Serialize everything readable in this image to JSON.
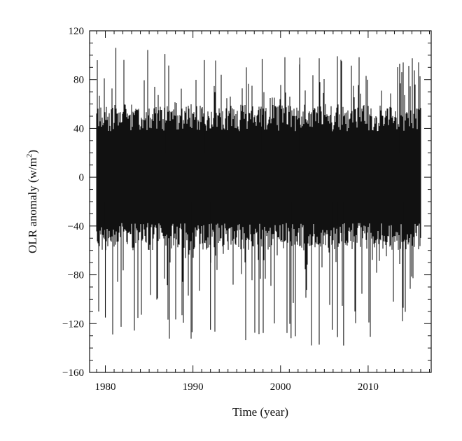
{
  "chart_data": {
    "type": "line",
    "title": "",
    "xlabel": "Time (year)",
    "ylabel_main": "OLR anomaly (w/m",
    "ylabel_sup": "2",
    "ylabel_end": ")",
    "xlim": [
      1978.2,
      2017.2
    ],
    "ylim": [
      -160,
      120
    ],
    "xticks": [
      1980,
      1990,
      2000,
      2010
    ],
    "yticks": [
      120,
      80,
      40,
      0,
      -40,
      -80,
      -120,
      -160
    ],
    "ytick_labels": [
      "120",
      "80",
      "40",
      "0",
      "−40",
      "−80",
      "−120",
      "−160"
    ],
    "series": [
      {
        "color": "#111111",
        "x_start": 1979.0,
        "x_end": 2016.0,
        "approx_typical_range": [
          -50,
          50
        ],
        "approx_max": 106,
        "approx_min": -138,
        "notable_peaks": [
          {
            "x": 1981.2,
            "y": 106
          },
          {
            "x": 1986.8,
            "y": 101
          },
          {
            "x": 1991.3,
            "y": 96
          },
          {
            "x": 1997.9,
            "y": 97
          },
          {
            "x": 2002.2,
            "y": 98
          },
          {
            "x": 2013.6,
            "y": 93
          }
        ],
        "notable_troughs": [
          {
            "x": 1980.0,
            "y": -115
          },
          {
            "x": 1989.9,
            "y": -127
          },
          {
            "x": 1992.0,
            "y": -125
          },
          {
            "x": 2001.2,
            "y": -132
          },
          {
            "x": 2005.9,
            "y": -125
          },
          {
            "x": 2006.5,
            "y": -131
          },
          {
            "x": 2007.2,
            "y": -138
          },
          {
            "x": 2014.0,
            "y": -107
          }
        ]
      }
    ],
    "grid": false,
    "legend": "none"
  }
}
